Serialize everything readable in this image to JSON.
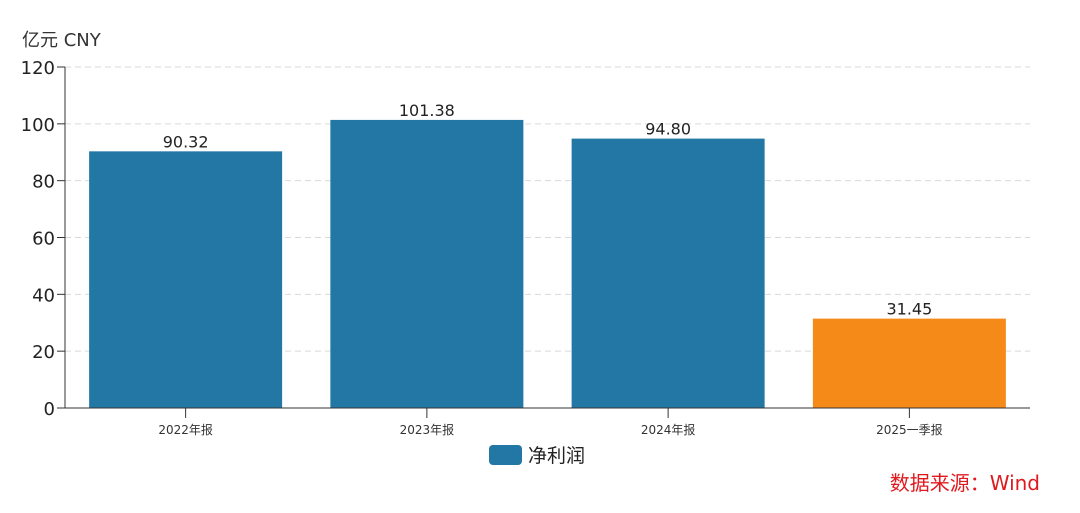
{
  "chart_data": {
    "type": "bar",
    "unit_label": "亿元  CNY",
    "categories": [
      "2022年报",
      "2023年报",
      "2024年报",
      "2025一季报"
    ],
    "series": [
      {
        "name": "净利润",
        "values": [
          90.32,
          101.38,
          94.8,
          31.45
        ],
        "labels": [
          "90.32",
          "101.38",
          "94.80",
          "31.45"
        ]
      }
    ],
    "bar_colors": [
      "#2277a4",
      "#2277a4",
      "#2277a4",
      "#f68a18"
    ],
    "ylim": [
      0,
      120
    ],
    "yticks": [
      0,
      20,
      40,
      60,
      80,
      100,
      120
    ],
    "grid": "horizontal dashed",
    "legend_placement": "bottom-center",
    "legend_color": "#2277a4"
  },
  "source": "数据来源：Wind",
  "source_color": "#e0191e"
}
